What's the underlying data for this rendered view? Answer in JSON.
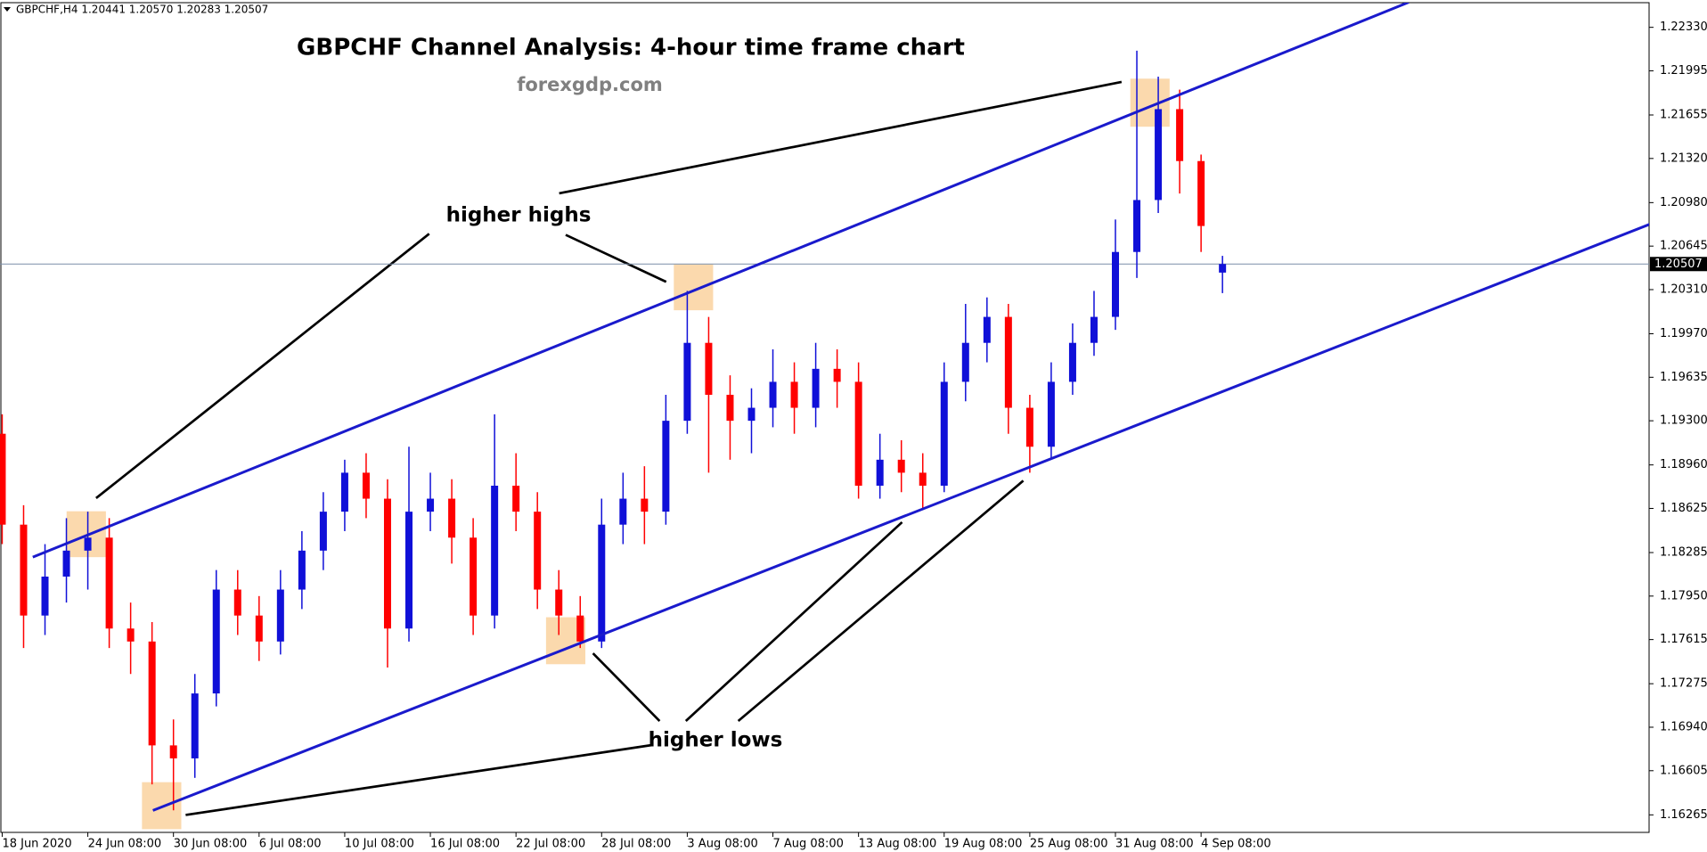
{
  "chart_data": {
    "type": "candlestick",
    "header": "GBPCHF,H4 1.20441 1.20570 1.20283 1.20507",
    "title": "GBPCHF Channel Analysis: 4-hour time frame chart",
    "subtitle": "forexgdp.com",
    "annotations": [
      "higher highs",
      "higher lows"
    ],
    "categories": [
      "18 Jun 2020",
      null,
      null,
      null,
      "24 Jun 08:00",
      null,
      null,
      null,
      "30 Jun 08:00",
      null,
      null,
      null,
      "6 Jul 08:00",
      null,
      null,
      null,
      "10 Jul 08:00",
      null,
      null,
      null,
      "16 Jul 08:00",
      null,
      null,
      null,
      "22 Jul 08:00",
      null,
      null,
      null,
      "28 Jul 08:00",
      null,
      null,
      null,
      "3 Aug 08:00",
      null,
      null,
      null,
      "7 Aug 08:00",
      null,
      null,
      null,
      "13 Aug 08:00",
      null,
      null,
      null,
      "19 Aug 08:00",
      null,
      null,
      null,
      "25 Aug 08:00",
      null,
      null,
      null,
      "31 Aug 08:00",
      null,
      null,
      null,
      "4 Sep 08:00",
      null
    ],
    "open": [
      1.192,
      1.185,
      1.178,
      1.181,
      1.183,
      1.184,
      1.177,
      1.176,
      1.168,
      1.167,
      1.172,
      1.18,
      1.178,
      1.176,
      1.18,
      1.183,
      1.186,
      1.189,
      1.187,
      1.177,
      1.186,
      1.187,
      1.184,
      1.178,
      1.188,
      1.186,
      1.18,
      1.178,
      1.176,
      1.185,
      1.187,
      1.186,
      1.193,
      1.199,
      1.195,
      1.193,
      1.194,
      1.196,
      1.194,
      1.197,
      1.196,
      1.188,
      1.19,
      1.189,
      1.188,
      1.196,
      1.199,
      1.201,
      1.194,
      1.191,
      1.196,
      1.199,
      1.201,
      1.206,
      1.21,
      1.217,
      1.213,
      1.20441
    ],
    "high": [
      1.1935,
      1.1865,
      1.1835,
      1.1855,
      1.186,
      1.1855,
      1.179,
      1.1775,
      1.17,
      1.1735,
      1.1815,
      1.1815,
      1.1795,
      1.1815,
      1.1845,
      1.1875,
      1.19,
      1.1905,
      1.1885,
      1.191,
      1.189,
      1.1885,
      1.1855,
      1.1935,
      1.1905,
      1.1875,
      1.1815,
      1.1795,
      1.187,
      1.189,
      1.1895,
      1.195,
      1.203,
      1.201,
      1.1965,
      1.1955,
      1.1985,
      1.1975,
      1.199,
      1.1985,
      1.1975,
      1.192,
      1.1915,
      1.1905,
      1.1975,
      1.202,
      1.2025,
      1.202,
      1.195,
      1.1975,
      1.2005,
      1.203,
      1.2085,
      1.2215,
      1.2195,
      1.2185,
      1.2135,
      1.2057
    ],
    "low": [
      1.1835,
      1.1755,
      1.1765,
      1.179,
      1.18,
      1.1755,
      1.1735,
      1.165,
      1.163,
      1.1655,
      1.171,
      1.1765,
      1.1745,
      1.175,
      1.1785,
      1.1815,
      1.1845,
      1.1855,
      1.174,
      1.176,
      1.1845,
      1.182,
      1.1765,
      1.177,
      1.1845,
      1.1785,
      1.1765,
      1.1755,
      1.1755,
      1.1835,
      1.1835,
      1.185,
      1.192,
      1.189,
      1.19,
      1.1905,
      1.1925,
      1.192,
      1.1925,
      1.194,
      1.187,
      1.187,
      1.1875,
      1.1862,
      1.1875,
      1.1945,
      1.1975,
      1.192,
      1.189,
      1.19,
      1.195,
      1.198,
      1.2,
      1.204,
      1.209,
      1.2105,
      1.206,
      1.20283
    ],
    "close": [
      1.185,
      1.178,
      1.181,
      1.183,
      1.184,
      1.177,
      1.176,
      1.168,
      1.167,
      1.172,
      1.18,
      1.178,
      1.176,
      1.18,
      1.183,
      1.186,
      1.189,
      1.187,
      1.177,
      1.186,
      1.187,
      1.184,
      1.178,
      1.188,
      1.186,
      1.18,
      1.178,
      1.176,
      1.185,
      1.187,
      1.186,
      1.193,
      1.199,
      1.195,
      1.193,
      1.194,
      1.196,
      1.194,
      1.197,
      1.196,
      1.188,
      1.19,
      1.189,
      1.188,
      1.196,
      1.199,
      1.201,
      1.194,
      1.191,
      1.196,
      1.199,
      1.201,
      1.206,
      1.21,
      1.217,
      1.213,
      1.208,
      1.20507
    ],
    "up_color": "#1010d8",
    "down_color": "#ff0000",
    "current_price": 1.20507,
    "channel_lines": [
      {
        "x": [
          1.43,
          65.7
        ],
        "y": [
          1.1825,
          1.22523
        ]
      },
      {
        "x": [
          7.04,
          79.6
        ],
        "y": [
          1.16299,
          1.20984
        ]
      }
    ],
    "channel_color": "#1a1acc",
    "ylim": [
      1.1613,
      1.22515
    ],
    "yticks": [
      {
        "value": 1.2233,
        "label": "1.22330"
      },
      1.21995,
      1.21655,
      {
        "value": 1.2132,
        "label": "1.21320"
      },
      {
        "value": 1.2098,
        "label": "1.20980"
      },
      1.20645,
      {
        "value": 1.2031,
        "label": "1.20310"
      },
      {
        "value": 1.1997,
        "label": "1.19970"
      },
      1.19635,
      {
        "value": 1.193,
        "label": "1.19300"
      },
      {
        "value": 1.1896,
        "label": "1.18960"
      },
      1.18625,
      1.18285,
      {
        "value": 1.1795,
        "label": "1.17950"
      },
      1.17615,
      1.17275,
      {
        "value": 1.1694,
        "label": "1.16940"
      },
      1.16605,
      1.16265
    ]
  }
}
